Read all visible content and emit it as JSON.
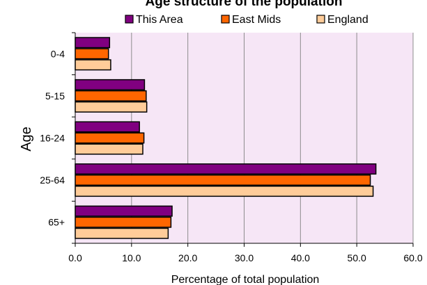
{
  "chart_data": {
    "type": "bar",
    "orientation": "horizontal",
    "title": "Age structure of the population",
    "xlabel": "Percentage of total population",
    "ylabel": "Age",
    "categories": [
      "0-4",
      "5-15",
      "16-24",
      "25-64",
      "65+"
    ],
    "series": [
      {
        "name": "This Area",
        "values": [
          6.1,
          12.3,
          11.4,
          53.4,
          17.2
        ],
        "color": "#800080"
      },
      {
        "name": "East Mids",
        "values": [
          5.9,
          12.6,
          12.2,
          52.4,
          17.0
        ],
        "color": "#ff6600"
      },
      {
        "name": "England",
        "values": [
          6.3,
          12.7,
          12.0,
          52.9,
          16.5
        ],
        "color": "#ffcc99"
      }
    ],
    "xlim": [
      0,
      60
    ],
    "xticks": [
      "0.0",
      "10.0",
      "20.0",
      "30.0",
      "40.0",
      "50.0",
      "60.0"
    ],
    "plot_background": "#f6e6f6",
    "grid": "vertical",
    "legend_position": "top"
  }
}
